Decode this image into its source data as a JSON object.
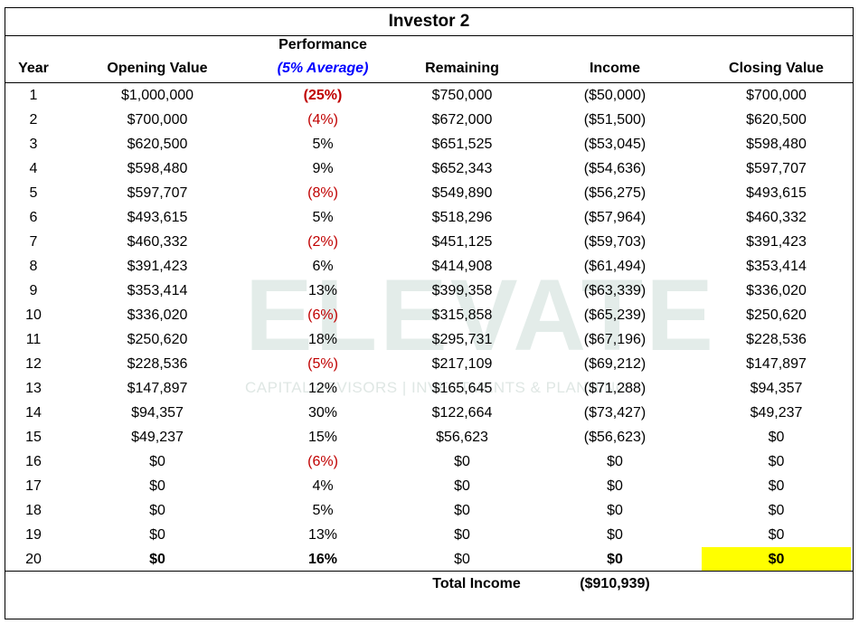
{
  "title": "Investor 2",
  "watermark": {
    "brand": "ELEVATE",
    "tagline": "CAPITAL ADVISORS | INVESTMENTS & PLANNING"
  },
  "headers": {
    "year": "Year",
    "opening": "Opening Value",
    "performance": "Performance",
    "performance_sub": "(5% Average)",
    "remaining": "Remaining",
    "income": "Income",
    "closing": "Closing Value"
  },
  "colors": {
    "negative": "#c00000",
    "average_note": "#0000ff",
    "highlight": "#ffff00"
  },
  "rows": [
    {
      "year": "1",
      "opening": "$1,000,000",
      "performance": "(25%)",
      "remaining": "$750,000",
      "income": "($50,000)",
      "closing": "$700,000"
    },
    {
      "year": "2",
      "opening": "$700,000",
      "performance": "(4%)",
      "remaining": "$672,000",
      "income": "($51,500)",
      "closing": "$620,500"
    },
    {
      "year": "3",
      "opening": "$620,500",
      "performance": "5%",
      "remaining": "$651,525",
      "income": "($53,045)",
      "closing": "$598,480"
    },
    {
      "year": "4",
      "opening": "$598,480",
      "performance": "9%",
      "remaining": "$652,343",
      "income": "($54,636)",
      "closing": "$597,707"
    },
    {
      "year": "5",
      "opening": "$597,707",
      "performance": "(8%)",
      "remaining": "$549,890",
      "income": "($56,275)",
      "closing": "$493,615"
    },
    {
      "year": "6",
      "opening": "$493,615",
      "performance": "5%",
      "remaining": "$518,296",
      "income": "($57,964)",
      "closing": "$460,332"
    },
    {
      "year": "7",
      "opening": "$460,332",
      "performance": "(2%)",
      "remaining": "$451,125",
      "income": "($59,703)",
      "closing": "$391,423"
    },
    {
      "year": "8",
      "opening": "$391,423",
      "performance": "6%",
      "remaining": "$414,908",
      "income": "($61,494)",
      "closing": "$353,414"
    },
    {
      "year": "9",
      "opening": "$353,414",
      "performance": "13%",
      "remaining": "$399,358",
      "income": "($63,339)",
      "closing": "$336,020"
    },
    {
      "year": "10",
      "opening": "$336,020",
      "performance": "(6%)",
      "remaining": "$315,858",
      "income": "($65,239)",
      "closing": "$250,620"
    },
    {
      "year": "11",
      "opening": "$250,620",
      "performance": "18%",
      "remaining": "$295,731",
      "income": "($67,196)",
      "closing": "$228,536"
    },
    {
      "year": "12",
      "opening": "$228,536",
      "performance": "(5%)",
      "remaining": "$217,109",
      "income": "($69,212)",
      "closing": "$147,897"
    },
    {
      "year": "13",
      "opening": "$147,897",
      "performance": "12%",
      "remaining": "$165,645",
      "income": "($71,288)",
      "closing": "$94,357"
    },
    {
      "year": "14",
      "opening": "$94,357",
      "performance": "30%",
      "remaining": "$122,664",
      "income": "($73,427)",
      "closing": "$49,237"
    },
    {
      "year": "15",
      "opening": "$49,237",
      "performance": "15%",
      "remaining": "$56,623",
      "income": "($56,623)",
      "closing": "$0"
    },
    {
      "year": "16",
      "opening": "$0",
      "performance": "(6%)",
      "remaining": "$0",
      "income": "$0",
      "closing": "$0"
    },
    {
      "year": "17",
      "opening": "$0",
      "performance": "4%",
      "remaining": "$0",
      "income": "$0",
      "closing": "$0"
    },
    {
      "year": "18",
      "opening": "$0",
      "performance": "5%",
      "remaining": "$0",
      "income": "$0",
      "closing": "$0"
    },
    {
      "year": "19",
      "opening": "$0",
      "performance": "13%",
      "remaining": "$0",
      "income": "$0",
      "closing": "$0"
    },
    {
      "year": "20",
      "opening": "$0",
      "performance": "16%",
      "remaining": "$0",
      "income": "$0",
      "closing": "$0"
    }
  ],
  "total": {
    "label": "Total Income",
    "value": "($910,939)"
  }
}
